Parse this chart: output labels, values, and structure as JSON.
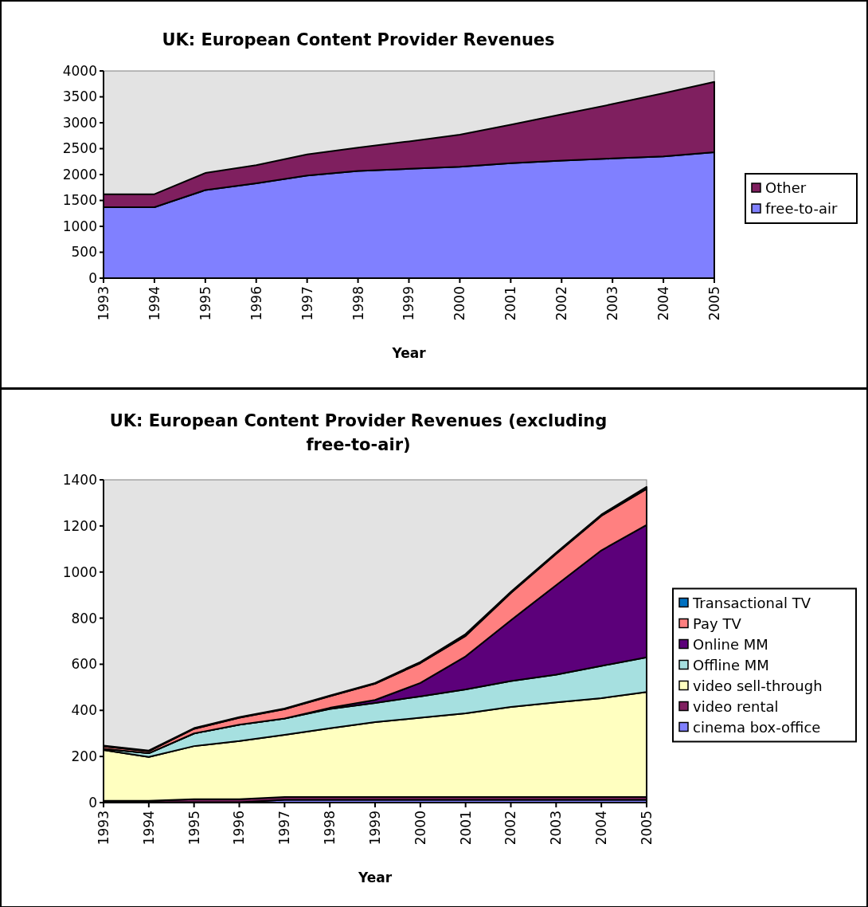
{
  "chart_data": [
    {
      "type": "area",
      "stacked": true,
      "title": "UK: European Content Provider Revenues",
      "xlabel": "Year",
      "categories": [
        "1993",
        "1994",
        "1995",
        "1996",
        "1997",
        "1998",
        "1999",
        "2000",
        "2001",
        "2002",
        "2003",
        "2004",
        "2005"
      ],
      "ylim": [
        0,
        4000
      ],
      "yticks": [
        0,
        500,
        1000,
        1500,
        2000,
        2500,
        3000,
        3500,
        4000
      ],
      "grid": false,
      "legend": "right",
      "series": [
        {
          "name": "free-to-air",
          "color": "#8080ff",
          "values": [
            1370,
            1370,
            1700,
            1830,
            1980,
            2070,
            2110,
            2150,
            2220,
            2270,
            2310,
            2350,
            2430
          ]
        },
        {
          "name": "Other",
          "color": "#7f1f5f",
          "values": [
            250,
            250,
            330,
            350,
            410,
            450,
            530,
            620,
            740,
            890,
            1050,
            1220,
            1360
          ]
        }
      ]
    },
    {
      "type": "area",
      "stacked": true,
      "title": "UK: European Content Provider Revenues (excluding free-to-air)",
      "xlabel": "Year",
      "categories": [
        "1993",
        "1994",
        "1995",
        "1996",
        "1997",
        "1998",
        "1999",
        "2000",
        "2001",
        "2002",
        "2003",
        "2004",
        "2005"
      ],
      "ylim": [
        0,
        1400
      ],
      "yticks": [
        0,
        200,
        400,
        600,
        800,
        1000,
        1200,
        1400
      ],
      "grid": false,
      "legend": "right",
      "series": [
        {
          "name": "cinema box-office",
          "color": "#8080ff",
          "values": [
            2,
            2,
            2,
            2,
            12,
            12,
            12,
            12,
            12,
            12,
            12,
            12,
            12
          ]
        },
        {
          "name": "video rental",
          "color": "#802060",
          "values": [
            6,
            6,
            13,
            13,
            12,
            12,
            12,
            12,
            12,
            12,
            12,
            12,
            12
          ]
        },
        {
          "name": "video sell-through",
          "color": "#ffffc0",
          "values": [
            220,
            190,
            230,
            252,
            270,
            298,
            325,
            344,
            363,
            391,
            411,
            429,
            456
          ]
        },
        {
          "name": "Offline MM",
          "color": "#a6e0e0",
          "values": [
            5,
            16,
            55,
            71,
            71,
            84,
            83,
            93,
            104,
            112,
            120,
            140,
            150
          ]
        },
        {
          "name": "Online MM",
          "color": "#5c007a",
          "values": [
            0,
            0,
            0,
            0,
            0,
            5,
            13,
            58,
            143,
            264,
            388,
            501,
            574
          ]
        },
        {
          "name": "Pay TV",
          "color": "#ff8080",
          "values": [
            11,
            9,
            20,
            30,
            40,
            50,
            71,
            86,
            89,
            118,
            136,
            150,
            157
          ]
        },
        {
          "name": "Transactional TV",
          "color": "#0070c0",
          "values": [
            3,
            3,
            3,
            3,
            3,
            3,
            3,
            5,
            8,
            5,
            5,
            5,
            8
          ]
        }
      ]
    }
  ]
}
